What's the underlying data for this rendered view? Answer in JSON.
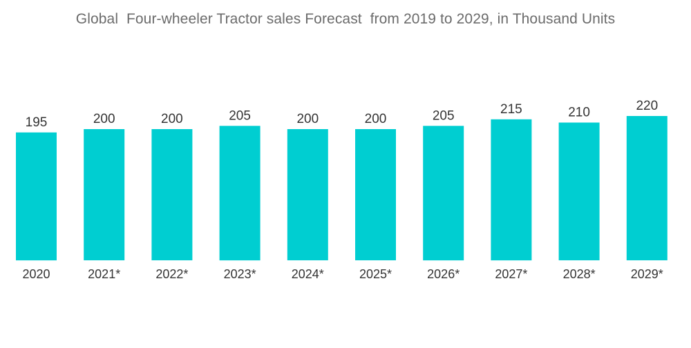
{
  "chart_data": {
    "type": "bar",
    "title": "Global  Four-wheeler Tractor sales Forecast  from 2019 to 2029, in Thousand Units",
    "xlabel": "",
    "ylabel": "",
    "categories": [
      "2020",
      "2021*",
      "2022*",
      "2023*",
      "2024*",
      "2025*",
      "2026*",
      "2027*",
      "2028*",
      "2029*"
    ],
    "values": [
      195,
      200,
      200,
      205,
      200,
      200,
      205,
      215,
      210,
      220
    ],
    "data_labels": [
      "195",
      "200",
      "200",
      "205",
      "200",
      "200",
      "205",
      "215",
      "210",
      "220"
    ],
    "ylim": [
      0,
      220
    ],
    "grid": false,
    "legend": "none",
    "colors": {
      "bar": "#00CED1",
      "label": "#333333",
      "title": "#6b6b6b"
    }
  }
}
